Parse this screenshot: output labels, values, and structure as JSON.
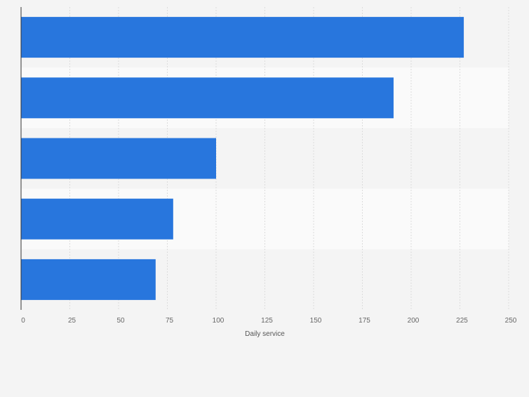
{
  "chart_data": {
    "type": "bar",
    "orientation": "horizontal",
    "categories": [
      "",
      "",
      "",
      "",
      ""
    ],
    "values": [
      227,
      191,
      100,
      78,
      69
    ],
    "xlabel": "Daily service",
    "ylabel": "",
    "xlim": [
      0,
      250
    ],
    "ticks": [
      0,
      25,
      50,
      75,
      100,
      125,
      150,
      175,
      200,
      225,
      250
    ],
    "grid": true,
    "legend": "none",
    "colors": {
      "bar": "#2876dd",
      "background": "#f4f4f4",
      "band_light": "#fafafa",
      "band_dark": "#f4f4f4",
      "grid": "#dcdcdc",
      "axis": "#333333",
      "tick_text": "#666666"
    }
  }
}
